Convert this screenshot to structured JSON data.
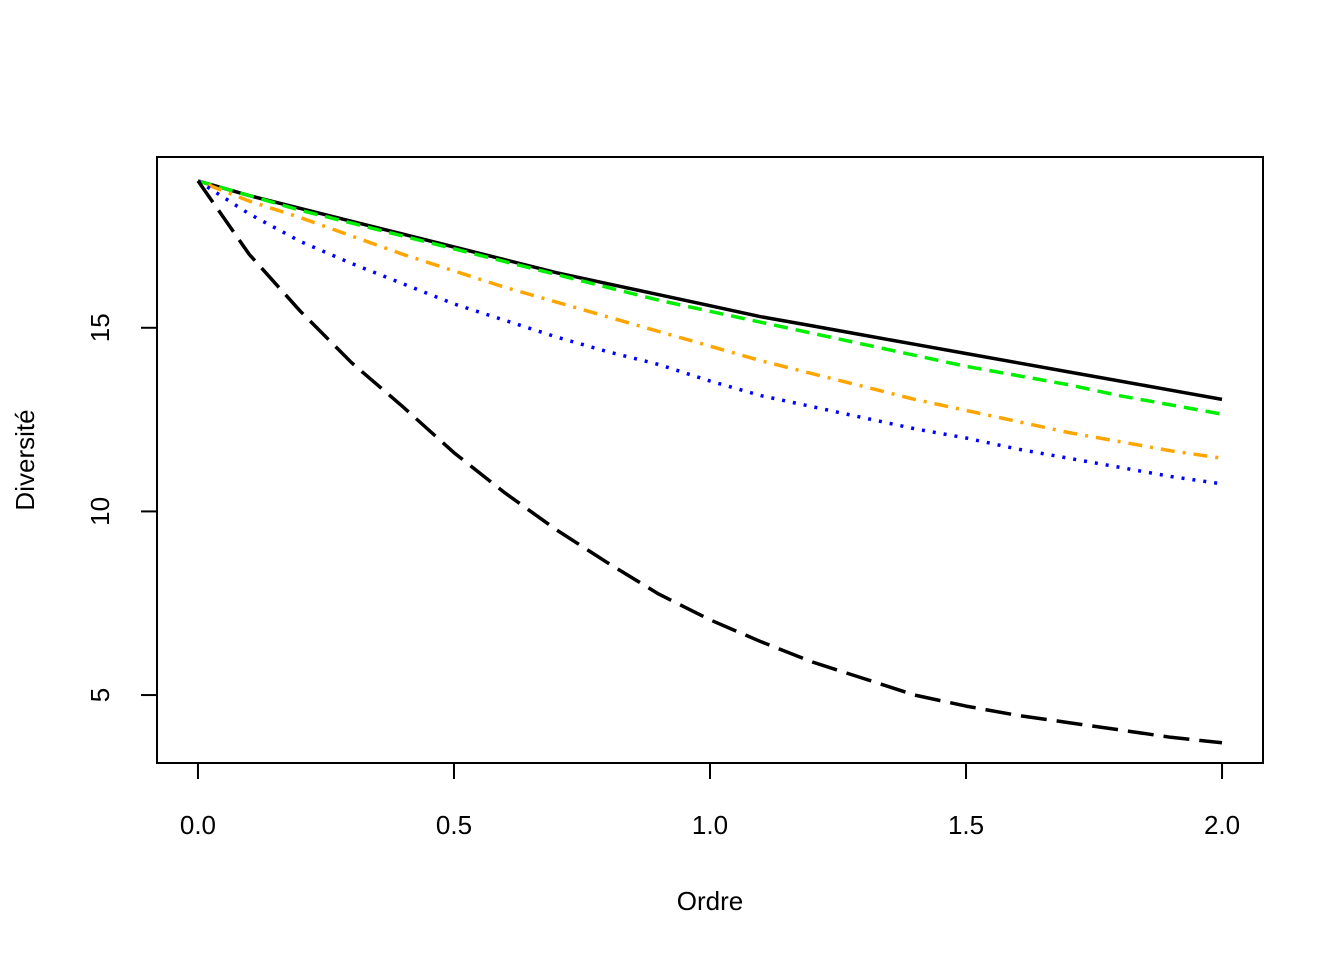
{
  "chart_data": {
    "type": "line",
    "title": "",
    "xlabel": "Ordre",
    "ylabel": "Diversité",
    "xlim": [
      -0.08,
      2.08
    ],
    "ylim": [
      3.15,
      19.65
    ],
    "xticks": [
      0.0,
      0.5,
      1.0,
      1.5,
      2.0
    ],
    "xtick_labels": [
      "0.0",
      "0.5",
      "1.0",
      "1.5",
      "2.0"
    ],
    "yticks": [
      5,
      10,
      15
    ],
    "ytick_labels": [
      "5",
      "10",
      "15"
    ],
    "grid": false,
    "legend": "none",
    "x": [
      0.0,
      0.1,
      0.2,
      0.3,
      0.4,
      0.5,
      0.6,
      0.7,
      0.8,
      0.9,
      1.0,
      1.1,
      1.2,
      1.3,
      1.4,
      1.5,
      1.6,
      1.7,
      1.8,
      1.9,
      2.0
    ],
    "series": [
      {
        "name": "solid-black",
        "color": "#000000",
        "dash": "solid",
        "values": [
          19.0,
          18.6,
          18.25,
          17.9,
          17.55,
          17.2,
          16.85,
          16.5,
          16.2,
          15.9,
          15.6,
          15.3,
          15.05,
          14.8,
          14.55,
          14.3,
          14.05,
          13.8,
          13.55,
          13.3,
          13.05
        ]
      },
      {
        "name": "dashed-green",
        "color": "#00ee00",
        "dash": "dashed",
        "values": [
          19.0,
          18.6,
          18.2,
          17.85,
          17.5,
          17.15,
          16.8,
          16.45,
          16.1,
          15.75,
          15.45,
          15.15,
          14.85,
          14.55,
          14.25,
          13.95,
          13.7,
          13.45,
          13.15,
          12.9,
          12.65
        ]
      },
      {
        "name": "dotdash-orange",
        "color": "#ffa500",
        "dash": "dotdash",
        "values": [
          19.0,
          18.45,
          18.0,
          17.5,
          17.0,
          16.55,
          16.1,
          15.7,
          15.3,
          14.9,
          14.5,
          14.1,
          13.75,
          13.4,
          13.05,
          12.75,
          12.45,
          12.15,
          11.9,
          11.65,
          11.45
        ]
      },
      {
        "name": "dotted-blue",
        "color": "#0000ff",
        "dash": "dotted",
        "values": [
          19.0,
          18.1,
          17.35,
          16.75,
          16.2,
          15.65,
          15.2,
          14.75,
          14.35,
          14.0,
          13.55,
          13.15,
          12.85,
          12.55,
          12.25,
          12.0,
          11.7,
          11.45,
          11.2,
          10.95,
          10.75
        ]
      },
      {
        "name": "longdash-black",
        "color": "#000000",
        "dash": "longdash",
        "values": [
          19.0,
          17.0,
          15.45,
          14.05,
          12.85,
          11.6,
          10.5,
          9.5,
          8.6,
          7.75,
          7.05,
          6.45,
          5.9,
          5.45,
          5.0,
          4.7,
          4.45,
          4.25,
          4.05,
          3.85,
          3.7
        ]
      }
    ]
  }
}
